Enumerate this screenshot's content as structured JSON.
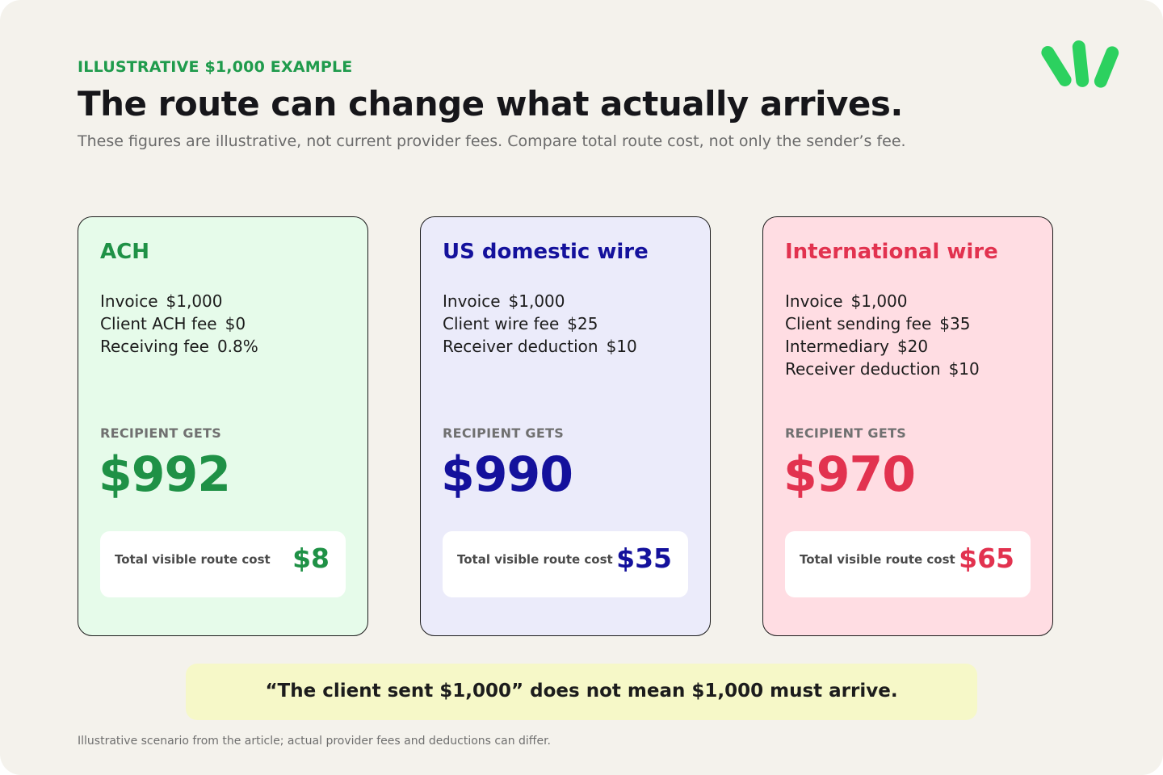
{
  "header": {
    "eyebrow": "ILLUSTRATIVE $1,000 EXAMPLE",
    "title": "The route can change what actually arrives.",
    "subtitle": "These figures are illustrative, not current provider fees. Compare total route cost, not only the sender’s fee."
  },
  "logo": {
    "icon": "sprout-icon",
    "color": "#2cd15f"
  },
  "cards": [
    {
      "title": "ACH",
      "accent": "#1f9146",
      "background": "#e6fbea",
      "line_items": [
        {
          "label": "Invoice",
          "amount": "$1,000"
        },
        {
          "label": "Client ACH fee",
          "amount": "$0"
        },
        {
          "label": "Receiving fee",
          "amount": "0.8%"
        }
      ],
      "recipient_label": "RECIPIENT GETS",
      "recipient_amount": "$992",
      "cost_label": "Total visible route cost",
      "cost_value": "$8"
    },
    {
      "title": "US domestic wire",
      "accent": "#14119c",
      "background": "#ebebfa",
      "line_items": [
        {
          "label": "Invoice",
          "amount": "$1,000"
        },
        {
          "label": "Client wire fee",
          "amount": "$25"
        },
        {
          "label": "Receiver deduction",
          "amount": "$10"
        }
      ],
      "recipient_label": "RECIPIENT GETS",
      "recipient_amount": "$990",
      "cost_label": "Total visible route cost",
      "cost_value": "$35"
    },
    {
      "title": "International wire",
      "accent": "#e2324f",
      "background": "#ffdde3",
      "line_items": [
        {
          "label": "Invoice",
          "amount": "$1,000"
        },
        {
          "label": "Client sending fee",
          "amount": "$35"
        },
        {
          "label": "Intermediary",
          "amount": "$20"
        },
        {
          "label": "Receiver deduction",
          "amount": "$10"
        }
      ],
      "recipient_label": "RECIPIENT GETS",
      "recipient_amount": "$970",
      "cost_label": "Total visible route cost",
      "cost_value": "$65"
    }
  ],
  "callout": {
    "text": "“The client sent $1,000” does not mean $1,000 must arrive."
  },
  "footnote": "Illustrative scenario from the article; actual provider fees and deductions can differ."
}
